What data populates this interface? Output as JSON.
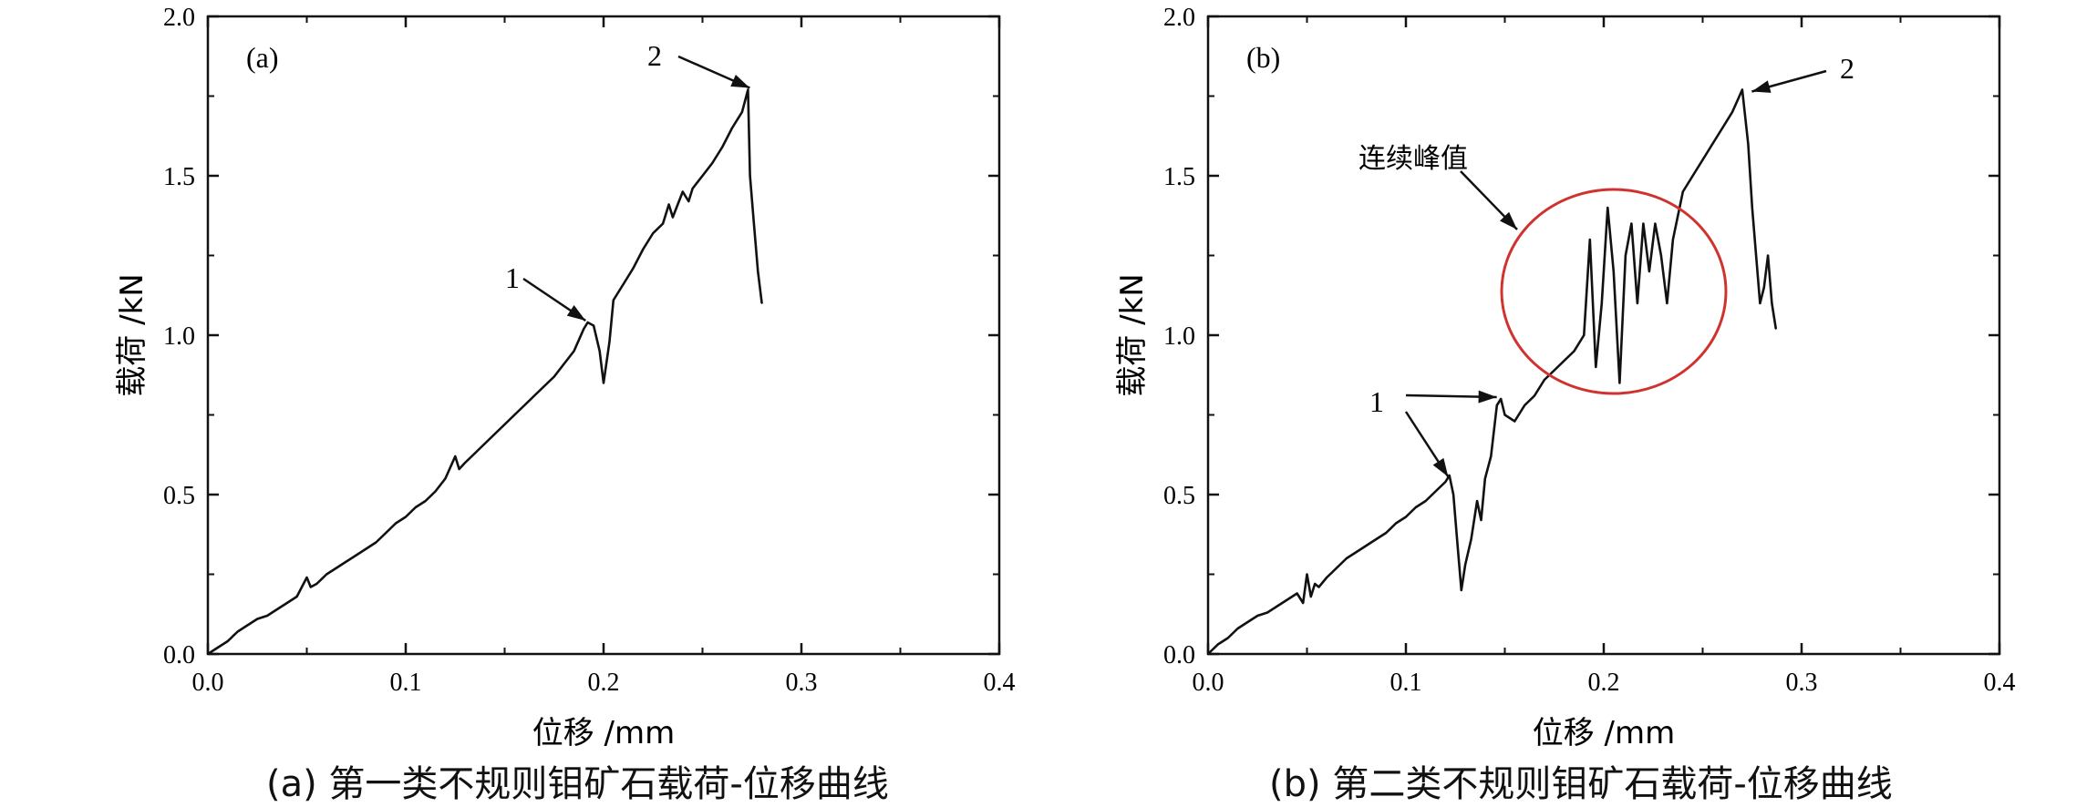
{
  "chart_data": [
    {
      "type": "line",
      "panel_label": "(a)",
      "caption": "(a) 第一类不规则钼矿石载荷-位移曲线",
      "xlabel": "位移 /mm",
      "ylabel": "载荷 /kN",
      "xlim": [
        0.0,
        0.4
      ],
      "ylim": [
        0.0,
        2.0
      ],
      "xticks": [
        "0.0",
        "0.1",
        "0.2",
        "0.3",
        "0.4"
      ],
      "yticks": [
        "0.0",
        "0.5",
        "1.0",
        "1.5",
        "2.0"
      ],
      "series": [
        {
          "x": [
            0.0,
            0.005,
            0.01,
            0.015,
            0.02,
            0.025,
            0.03,
            0.035,
            0.04,
            0.045,
            0.05,
            0.052,
            0.055,
            0.06,
            0.065,
            0.07,
            0.075,
            0.08,
            0.085,
            0.09,
            0.095,
            0.1,
            0.105,
            0.11,
            0.115,
            0.12,
            0.125,
            0.127,
            0.13,
            0.135,
            0.14,
            0.145,
            0.15,
            0.155,
            0.16,
            0.165,
            0.17,
            0.175,
            0.18,
            0.185,
            0.19,
            0.192,
            0.195,
            0.198,
            0.2,
            0.203,
            0.205,
            0.21,
            0.215,
            0.22,
            0.225,
            0.23,
            0.233,
            0.235,
            0.24,
            0.243,
            0.245,
            0.25,
            0.255,
            0.26,
            0.265,
            0.27,
            0.273,
            0.274,
            0.276,
            0.278,
            0.28
          ],
          "y": [
            0.0,
            0.02,
            0.04,
            0.07,
            0.09,
            0.11,
            0.12,
            0.14,
            0.16,
            0.18,
            0.24,
            0.21,
            0.22,
            0.25,
            0.27,
            0.29,
            0.31,
            0.33,
            0.35,
            0.38,
            0.41,
            0.43,
            0.46,
            0.48,
            0.51,
            0.55,
            0.62,
            0.58,
            0.6,
            0.63,
            0.66,
            0.69,
            0.72,
            0.75,
            0.78,
            0.81,
            0.84,
            0.87,
            0.91,
            0.95,
            1.02,
            1.04,
            1.03,
            0.95,
            0.85,
            0.98,
            1.11,
            1.16,
            1.21,
            1.27,
            1.32,
            1.35,
            1.41,
            1.37,
            1.45,
            1.42,
            1.46,
            1.5,
            1.54,
            1.59,
            1.65,
            1.7,
            1.77,
            1.5,
            1.35,
            1.2,
            1.1
          ]
        }
      ],
      "annotations": [
        {
          "text": "1",
          "x": 0.19,
          "y": 1.04
        },
        {
          "text": "2",
          "x": 0.273,
          "y": 1.77
        }
      ]
    },
    {
      "type": "line",
      "panel_label": "(b)",
      "caption": "(b) 第二类不规则钼矿石载荷-位移曲线",
      "xlabel": "位移 /mm",
      "ylabel": "载荷 /kN",
      "xlim": [
        0.0,
        0.4
      ],
      "ylim": [
        0.0,
        2.0
      ],
      "xticks": [
        "0.0",
        "0.1",
        "0.2",
        "0.3",
        "0.4"
      ],
      "yticks": [
        "0.0",
        "0.5",
        "1.0",
        "1.5",
        "2.0"
      ],
      "series": [
        {
          "x": [
            0.0,
            0.005,
            0.01,
            0.015,
            0.02,
            0.025,
            0.03,
            0.035,
            0.04,
            0.045,
            0.048,
            0.05,
            0.052,
            0.054,
            0.056,
            0.06,
            0.065,
            0.07,
            0.075,
            0.08,
            0.085,
            0.09,
            0.095,
            0.1,
            0.105,
            0.11,
            0.115,
            0.12,
            0.122,
            0.124,
            0.126,
            0.128,
            0.13,
            0.133,
            0.136,
            0.138,
            0.14,
            0.143,
            0.146,
            0.148,
            0.15,
            0.155,
            0.16,
            0.165,
            0.17,
            0.175,
            0.18,
            0.185,
            0.19,
            0.193,
            0.196,
            0.199,
            0.202,
            0.205,
            0.208,
            0.211,
            0.214,
            0.217,
            0.22,
            0.223,
            0.226,
            0.229,
            0.232,
            0.235,
            0.24,
            0.245,
            0.25,
            0.255,
            0.26,
            0.265,
            0.27,
            0.273,
            0.275,
            0.277,
            0.279,
            0.281,
            0.283,
            0.285,
            0.287
          ],
          "y": [
            0.0,
            0.03,
            0.05,
            0.08,
            0.1,
            0.12,
            0.13,
            0.15,
            0.17,
            0.19,
            0.16,
            0.25,
            0.18,
            0.22,
            0.21,
            0.24,
            0.27,
            0.3,
            0.32,
            0.34,
            0.36,
            0.38,
            0.41,
            0.43,
            0.46,
            0.48,
            0.51,
            0.54,
            0.56,
            0.5,
            0.35,
            0.2,
            0.28,
            0.36,
            0.48,
            0.42,
            0.55,
            0.62,
            0.78,
            0.8,
            0.75,
            0.73,
            0.78,
            0.81,
            0.86,
            0.89,
            0.92,
            0.95,
            1.0,
            1.3,
            0.9,
            1.1,
            1.4,
            1.2,
            0.85,
            1.25,
            1.35,
            1.1,
            1.35,
            1.2,
            1.35,
            1.25,
            1.1,
            1.3,
            1.45,
            1.5,
            1.55,
            1.6,
            1.65,
            1.7,
            1.77,
            1.6,
            1.4,
            1.25,
            1.1,
            1.15,
            1.25,
            1.1,
            1.02
          ]
        }
      ],
      "annotations": [
        {
          "text": "1",
          "x": 0.12,
          "y": 0.55
        },
        {
          "text": "1",
          "x": 0.145,
          "y": 0.8
        },
        {
          "text": "2",
          "x": 0.273,
          "y": 1.77
        },
        {
          "text": "连续峰值",
          "x": 0.21,
          "y": 1.15
        }
      ]
    }
  ]
}
